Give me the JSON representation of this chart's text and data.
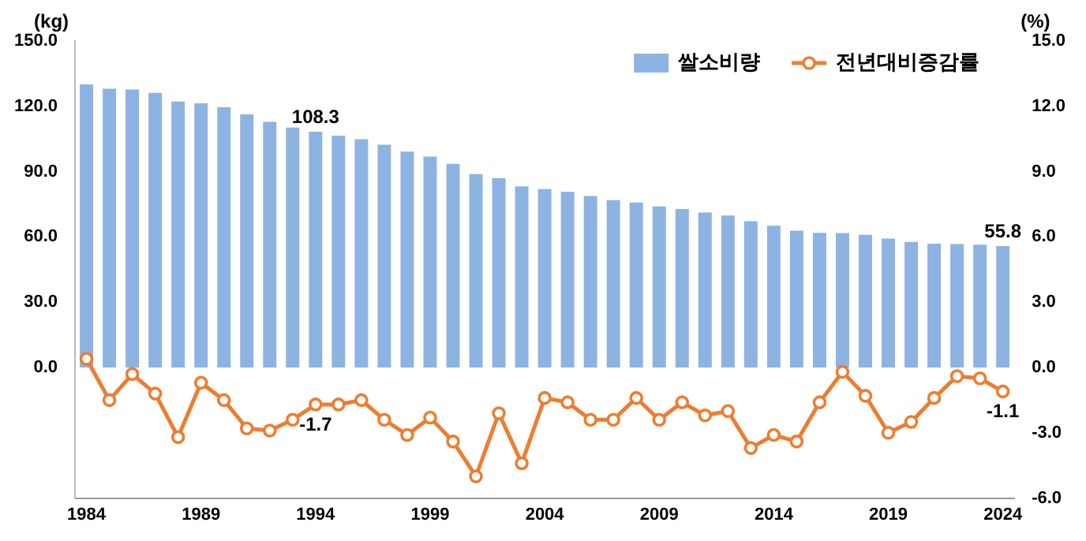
{
  "chart_data": {
    "type": "bar",
    "ylabel": "(kg)",
    "y2label": "(%)",
    "categories": [
      "1984",
      null,
      null,
      null,
      null,
      "1989",
      null,
      null,
      null,
      null,
      "1994",
      null,
      null,
      null,
      null,
      "1999",
      null,
      null,
      null,
      null,
      "2004",
      null,
      null,
      null,
      null,
      "2009",
      null,
      null,
      null,
      null,
      "2014",
      null,
      null,
      null,
      null,
      "2019",
      null,
      null,
      null,
      null,
      "2024"
    ],
    "series": [
      {
        "name": "쌀소비량",
        "type": "bar",
        "color": "#8db3e2",
        "values": [
          130.1,
          128.1,
          127.7,
          126.2,
          122.2,
          121.4,
          119.6,
          116.3,
          112.9,
          110.2,
          108.3,
          106.5,
          104.9,
          102.4,
          99.2,
          96.9,
          93.6,
          88.9,
          87.0,
          83.2,
          82.0,
          80.7,
          78.8,
          76.9,
          75.8,
          74.0,
          72.8,
          71.2,
          69.8,
          67.2,
          65.1,
          62.9,
          61.9,
          61.8,
          61.0,
          59.2,
          57.7,
          56.9,
          56.7,
          56.4,
          55.8
        ],
        "value_labels": [
          null,
          null,
          null,
          null,
          null,
          null,
          null,
          null,
          null,
          null,
          "108.3",
          null,
          null,
          null,
          null,
          null,
          null,
          null,
          null,
          null,
          null,
          null,
          null,
          null,
          null,
          null,
          null,
          null,
          null,
          null,
          null,
          null,
          null,
          null,
          null,
          null,
          null,
          null,
          null,
          null,
          "55.8"
        ]
      },
      {
        "name": "전년대비증감률",
        "type": "line",
        "axis": "y2",
        "color": "#ed7d31",
        "values": [
          0.4,
          -1.5,
          -0.3,
          -1.2,
          -3.2,
          -0.7,
          -1.5,
          -2.8,
          -2.9,
          -2.4,
          -1.7,
          -1.7,
          -1.5,
          -2.4,
          -3.1,
          -2.3,
          -3.4,
          -5.0,
          -2.1,
          -4.4,
          -1.4,
          -1.6,
          -2.4,
          -2.4,
          -1.4,
          -2.4,
          -1.6,
          -2.2,
          -2.0,
          -3.7,
          -3.1,
          -3.4,
          -1.6,
          -0.2,
          -1.3,
          -3.0,
          -2.5,
          -1.4,
          -0.4,
          -0.5,
          -1.1
        ],
        "value_labels": [
          null,
          null,
          null,
          null,
          null,
          null,
          null,
          null,
          null,
          null,
          "-1.7",
          null,
          null,
          null,
          null,
          null,
          null,
          null,
          null,
          null,
          null,
          null,
          null,
          null,
          null,
          null,
          null,
          null,
          null,
          null,
          null,
          null,
          null,
          null,
          null,
          null,
          null,
          null,
          null,
          null,
          "-1.1"
        ]
      }
    ],
    "ylim": [
      -60,
      150
    ],
    "yticks": [
      {
        "value": 0,
        "label": "0.0"
      },
      {
        "value": 30,
        "label": "30.0"
      },
      {
        "value": 60,
        "label": "60.0"
      },
      {
        "value": 90,
        "label": "90.0"
      },
      {
        "value": 120,
        "label": "120.0"
      },
      {
        "value": 150,
        "label": "150.0"
      }
    ],
    "y2lim": [
      -6,
      15
    ],
    "y2ticks": [
      {
        "value": -6,
        "label": "-6.0"
      },
      {
        "value": -3,
        "label": "-3.0"
      },
      {
        "value": 0,
        "label": "0.0"
      },
      {
        "value": 3,
        "label": "3.0"
      },
      {
        "value": 6,
        "label": "6.0"
      },
      {
        "value": 9,
        "label": "9.0"
      },
      {
        "value": 12,
        "label": "12.0"
      },
      {
        "value": 15,
        "label": "15.0"
      }
    ],
    "legend": "top right",
    "marker": "circle",
    "line_style": "solid",
    "grid": false
  }
}
